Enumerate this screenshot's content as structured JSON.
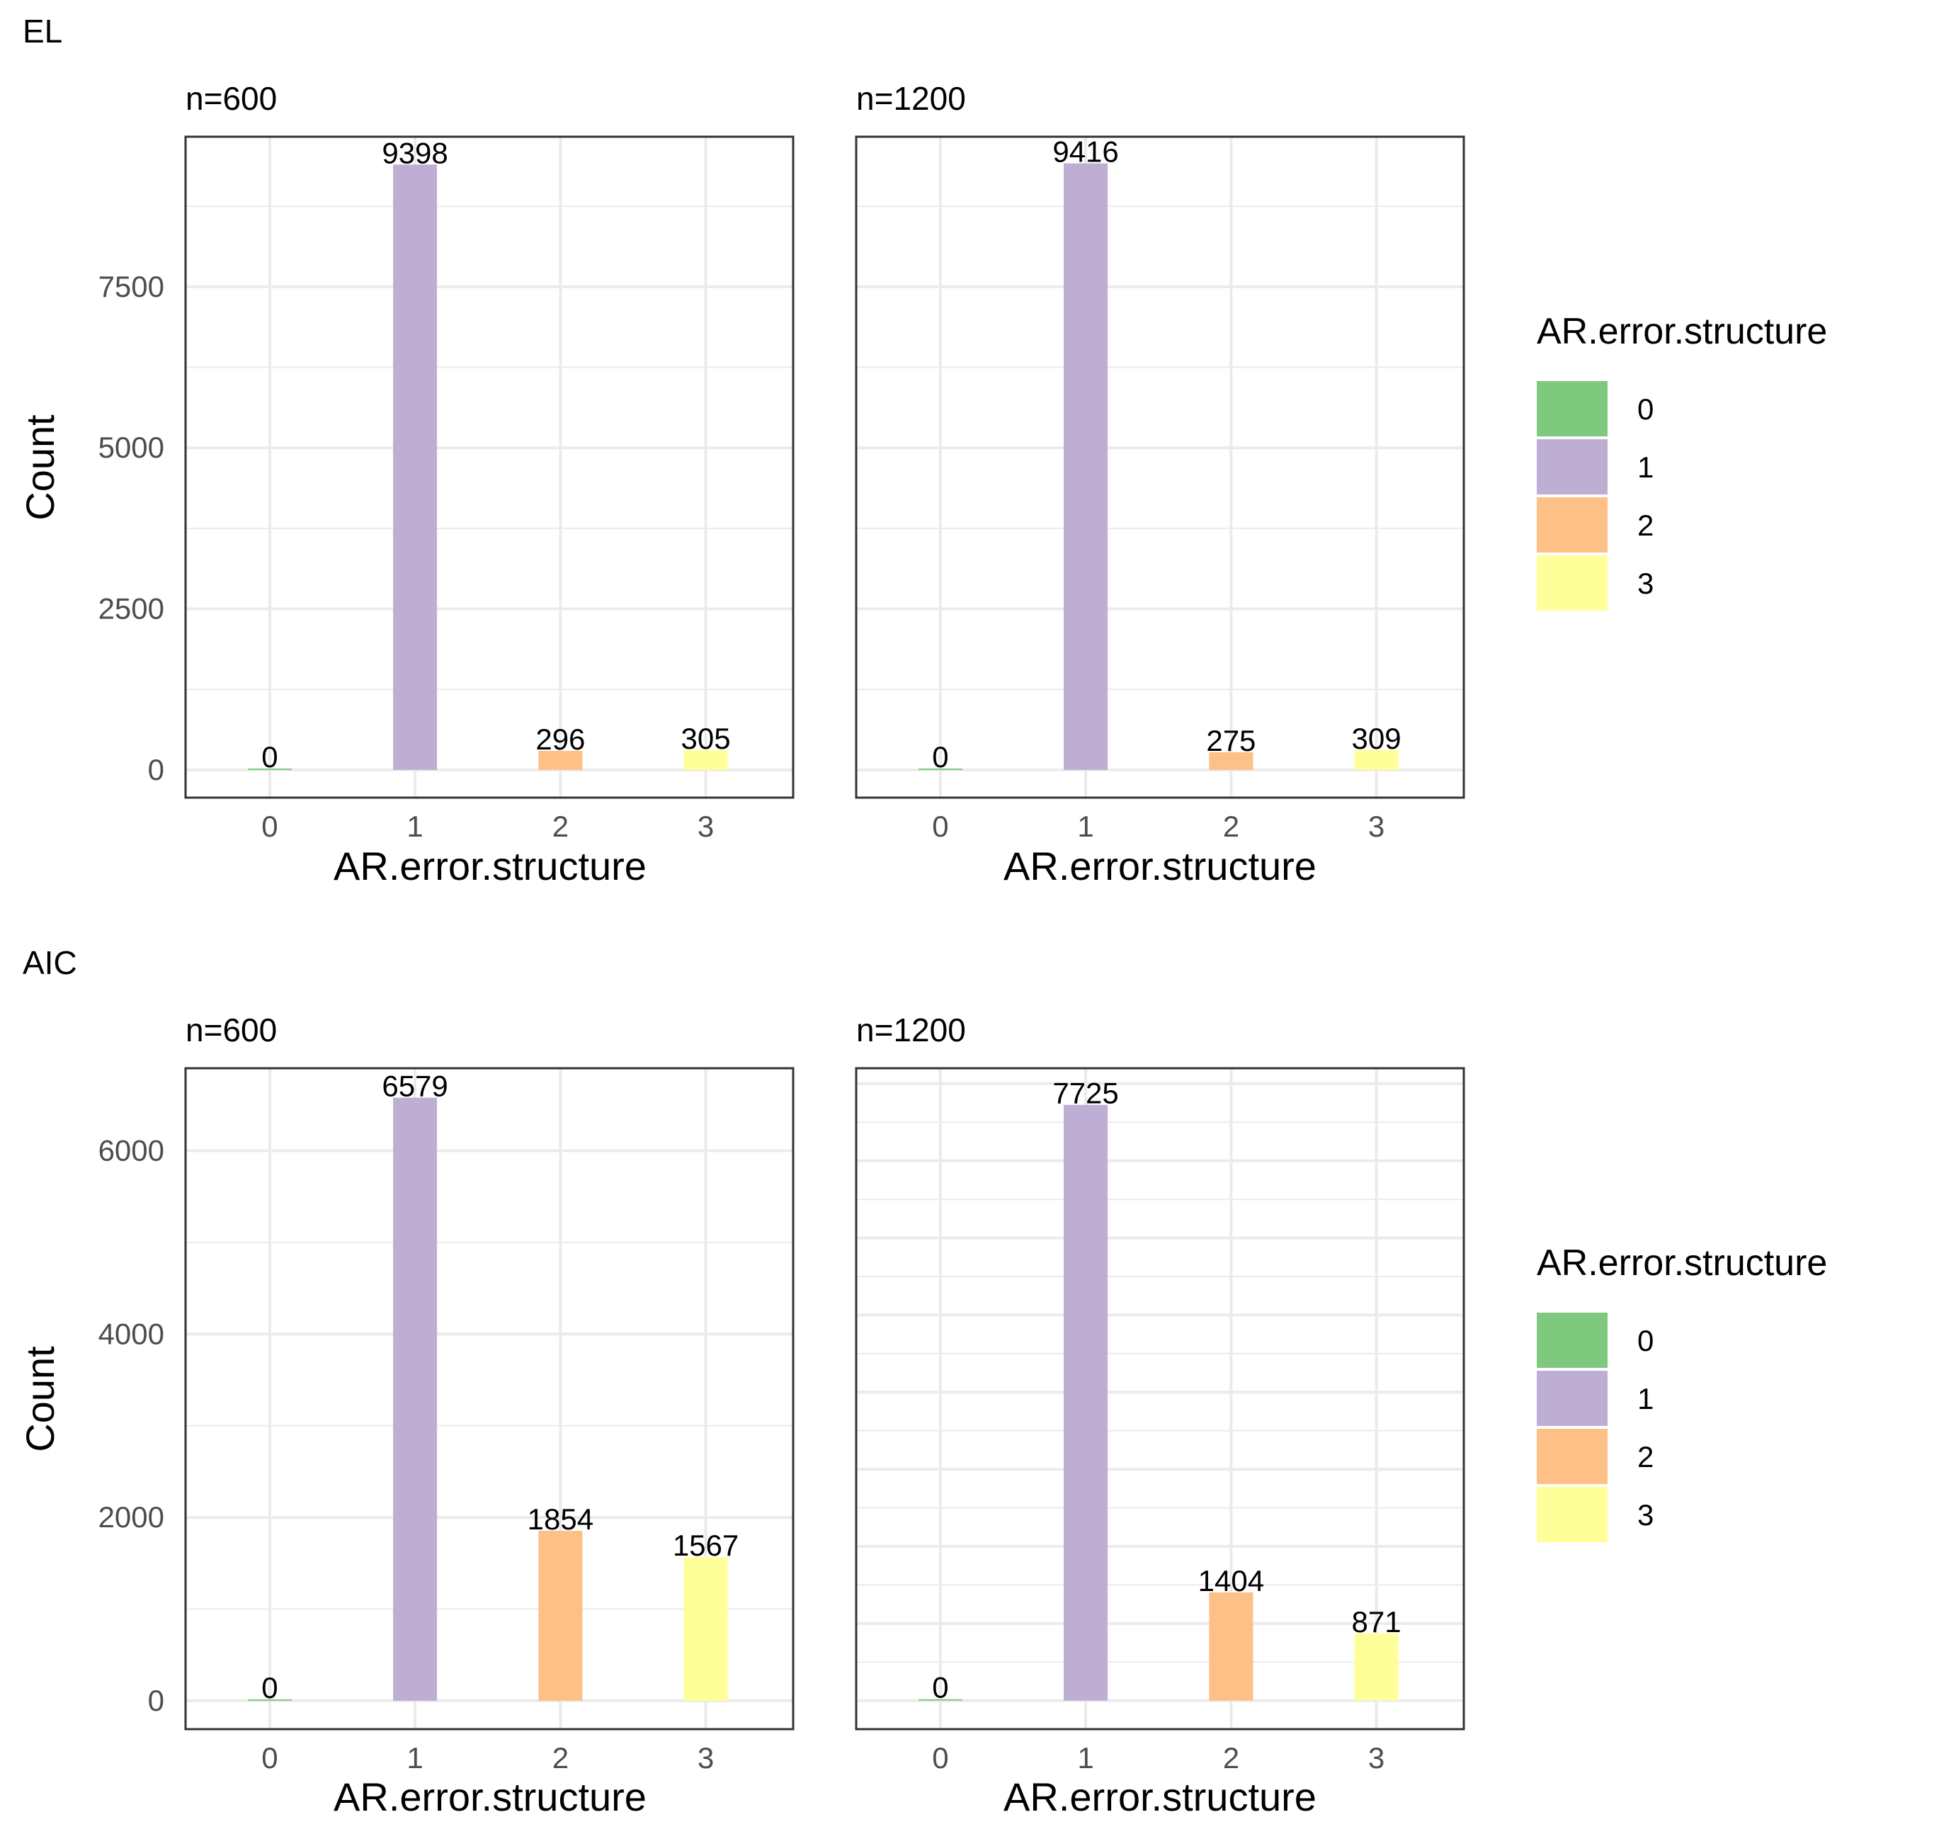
{
  "chart_data": [
    {
      "type": "bar",
      "row": "EL",
      "title": "n=600",
      "categories": [
        "0",
        "1",
        "2",
        "3"
      ],
      "values": [
        0,
        9398,
        296,
        305
      ],
      "xlabel": "AR.error.structure",
      "ylabel": "Count",
      "ylim": [
        -430,
        9830
      ],
      "yticks": [
        0,
        2500,
        5000,
        7500
      ],
      "grid": true
    },
    {
      "type": "bar",
      "row": "EL",
      "title": "n=1200",
      "categories": [
        "0",
        "1",
        "2",
        "3"
      ],
      "values": [
        0,
        9416,
        275,
        309
      ],
      "xlabel": "AR.error.structure",
      "ylabel": "",
      "ylim": [
        -430,
        9830
      ],
      "yticks": [
        0,
        2500,
        5000,
        7500
      ],
      "grid": true
    },
    {
      "type": "bar",
      "row": "AIC",
      "title": "n=600",
      "categories": [
        "0",
        "1",
        "2",
        "3"
      ],
      "values": [
        0,
        6579,
        1854,
        1567
      ],
      "xlabel": "AR.error.structure",
      "ylabel": "Count",
      "ylim": [
        -310,
        6900
      ],
      "yticks": [
        0,
        2000,
        4000,
        6000
      ],
      "grid": true
    },
    {
      "type": "bar",
      "row": "AIC",
      "title": "n=1200",
      "categories": [
        "0",
        "1",
        "2",
        "3"
      ],
      "values": [
        0,
        7725,
        1404,
        871
      ],
      "xlabel": "AR.error.structure",
      "ylabel": "",
      "ylim": [
        -370,
        8200
      ],
      "yticks": [],
      "grid": true
    }
  ],
  "rows": [
    {
      "label": "EL"
    },
    {
      "label": "AIC"
    }
  ],
  "legend": {
    "title": "AR.error.structure",
    "placement": "right",
    "items": [
      {
        "label": "0",
        "color": "#7fc97f"
      },
      {
        "label": "1",
        "color": "#beaed4"
      },
      {
        "label": "2",
        "color": "#fdc086"
      },
      {
        "label": "3",
        "color": "#ffff99"
      }
    ]
  },
  "colors": {
    "0": "#7fc97f",
    "1": "#beaed4",
    "2": "#fdc086",
    "3": "#ffff99",
    "grid": "#ebebeb",
    "panel_border": "#333333"
  }
}
